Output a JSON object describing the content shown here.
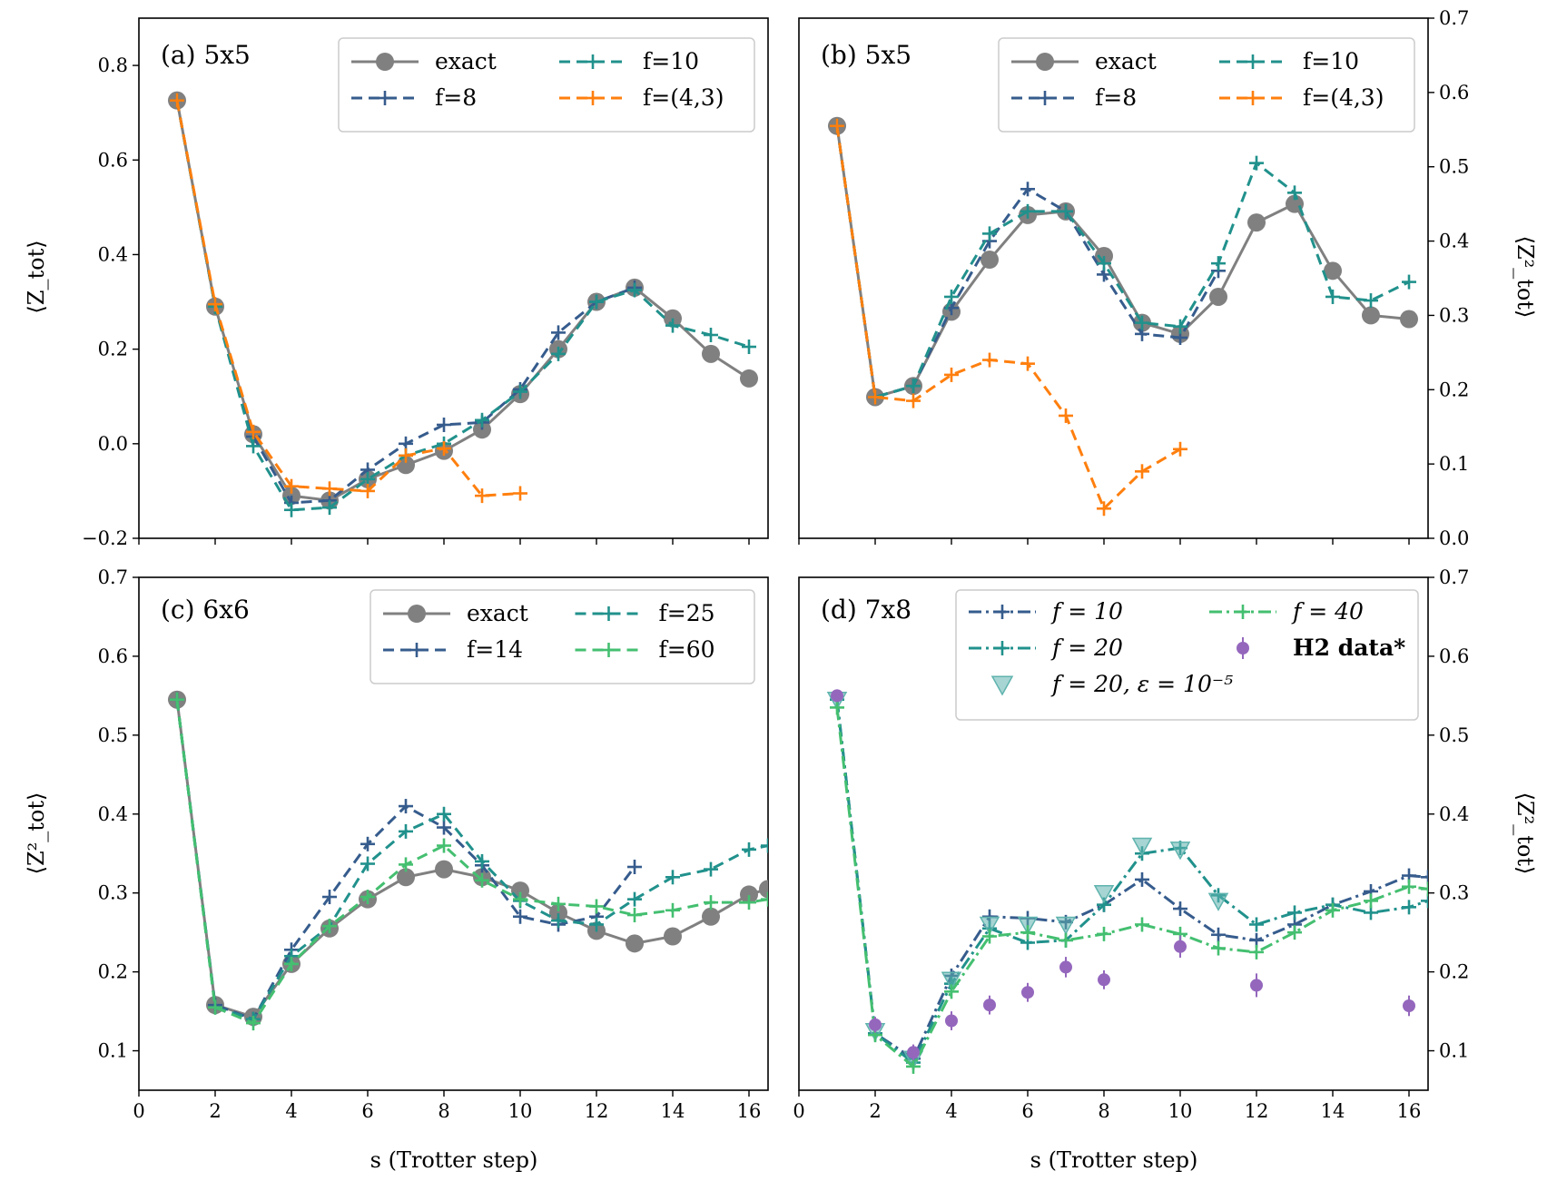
{
  "colors": {
    "exact": "#808080",
    "f8": "#365c8d",
    "f10": "#21918c",
    "f43": "#ff7f0e",
    "f14": "#365c8d",
    "f25": "#21918c",
    "f60": "#44bf70",
    "d_f10": "#365c8d",
    "d_f20": "#21918c",
    "d_f40": "#44bf70",
    "d_eps": "#5fb3ae",
    "h2": "#9467bd"
  },
  "chart_data": [
    {
      "id": "a",
      "type": "line",
      "title": "(a) 5x5",
      "ylabel": "⟨Z_tot⟩",
      "ylabel_side": "left",
      "xlabel": "",
      "xlim": [
        0,
        16.5
      ],
      "ylim": [
        -0.2,
        0.9
      ],
      "xticks": [
        0,
        2,
        4,
        6,
        8,
        10,
        12,
        14,
        16
      ],
      "yticks": [
        -0.2,
        0.0,
        0.2,
        0.4,
        0.6,
        0.8
      ],
      "ytick_labels": [
        "−0.2",
        "0.0",
        "0.2",
        "0.4",
        "0.6",
        "0.8"
      ],
      "legend": {
        "placement": "top-right",
        "columns": 2
      },
      "series": [
        {
          "name": "exact",
          "style": "exact",
          "color": "#808080",
          "x": [
            1,
            2,
            3,
            4,
            5,
            6,
            7,
            8,
            9,
            10,
            11,
            12,
            13,
            14,
            15,
            16
          ],
          "y": [
            0.726,
            0.29,
            0.02,
            -0.11,
            -0.12,
            -0.075,
            -0.045,
            -0.015,
            0.03,
            0.105,
            0.2,
            0.3,
            0.33,
            0.265,
            0.19,
            0.138
          ]
        },
        {
          "name": "f=8",
          "style": "dash-plus",
          "color": "#365c8d",
          "x": [
            1,
            2,
            3,
            4,
            5,
            6,
            7,
            8,
            9,
            10,
            11,
            12,
            13
          ],
          "y": [
            0.726,
            0.29,
            0.015,
            -0.125,
            -0.12,
            -0.055,
            0.0,
            0.04,
            0.045,
            0.115,
            0.235,
            0.3,
            0.33
          ]
        },
        {
          "name": "f=10",
          "style": "dash-plus",
          "color": "#21918c",
          "x": [
            1,
            2,
            3,
            4,
            5,
            6,
            7,
            8,
            9,
            10,
            11,
            12,
            13,
            14,
            15,
            16
          ],
          "y": [
            0.726,
            0.29,
            -0.005,
            -0.14,
            -0.135,
            -0.075,
            -0.025,
            0.0,
            0.05,
            0.11,
            0.19,
            0.3,
            0.325,
            0.25,
            0.23,
            0.205
          ]
        },
        {
          "name": "f=(4,3)",
          "style": "dash-plus",
          "color": "#ff7f0e",
          "x": [
            1,
            2,
            3,
            4,
            5,
            6,
            7,
            8,
            9,
            10
          ],
          "y": [
            0.726,
            0.295,
            0.025,
            -0.09,
            -0.095,
            -0.1,
            -0.025,
            -0.01,
            -0.11,
            -0.105
          ]
        }
      ]
    },
    {
      "id": "b",
      "type": "line",
      "title": "(b) 5x5",
      "ylabel": "⟨Z²_tot⟩",
      "ylabel_side": "right",
      "xlabel": "",
      "xlim": [
        0,
        16.5
      ],
      "ylim": [
        0.0,
        0.7
      ],
      "xticks": [
        0,
        2,
        4,
        6,
        8,
        10,
        12,
        14,
        16
      ],
      "yticks": [
        0.0,
        0.1,
        0.2,
        0.3,
        0.4,
        0.5,
        0.6,
        0.7
      ],
      "ytick_labels": [
        "0.0",
        "0.1",
        "0.2",
        "0.3",
        "0.4",
        "0.5",
        "0.6",
        "0.7"
      ],
      "legend": {
        "placement": "top-right",
        "columns": 2
      },
      "series": [
        {
          "name": "exact",
          "style": "exact",
          "color": "#808080",
          "x": [
            1,
            2,
            3,
            4,
            5,
            6,
            7,
            8,
            9,
            10,
            11,
            12,
            13,
            14,
            15,
            16
          ],
          "y": [
            0.555,
            0.19,
            0.205,
            0.305,
            0.375,
            0.435,
            0.44,
            0.38,
            0.29,
            0.275,
            0.325,
            0.425,
            0.45,
            0.36,
            0.3,
            0.295
          ]
        },
        {
          "name": "f=8",
          "style": "dash-plus",
          "color": "#365c8d",
          "x": [
            1,
            2,
            3,
            4,
            5,
            6,
            7,
            8,
            9,
            10,
            11
          ],
          "y": [
            0.555,
            0.19,
            0.205,
            0.31,
            0.4,
            0.47,
            0.44,
            0.355,
            0.275,
            0.27,
            0.36
          ]
        },
        {
          "name": "f=10",
          "style": "dash-plus",
          "color": "#21918c",
          "x": [
            1,
            2,
            3,
            4,
            5,
            6,
            7,
            8,
            9,
            10,
            11,
            12,
            13,
            14,
            15,
            16
          ],
          "y": [
            0.555,
            0.19,
            0.205,
            0.325,
            0.41,
            0.44,
            0.44,
            0.37,
            0.29,
            0.285,
            0.37,
            0.505,
            0.465,
            0.325,
            0.32,
            0.345
          ]
        },
        {
          "name": "f=(4,3)",
          "style": "dash-plus",
          "color": "#ff7f0e",
          "x": [
            1,
            2,
            3,
            4,
            5,
            6,
            7,
            8,
            9,
            10
          ],
          "y": [
            0.555,
            0.19,
            0.185,
            0.22,
            0.24,
            0.235,
            0.165,
            0.04,
            0.09,
            0.12
          ]
        }
      ]
    },
    {
      "id": "c",
      "type": "line",
      "title": "(c) 6x6",
      "ylabel": "⟨Z²_tot⟩",
      "ylabel_side": "left",
      "xlabel": "s (Trotter step)",
      "xlim": [
        0,
        16.5
      ],
      "ylim": [
        0.05,
        0.7
      ],
      "xticks": [
        0,
        2,
        4,
        6,
        8,
        10,
        12,
        14,
        16
      ],
      "yticks": [
        0.1,
        0.2,
        0.3,
        0.4,
        0.5,
        0.6,
        0.7
      ],
      "ytick_labels": [
        "0.1",
        "0.2",
        "0.3",
        "0.4",
        "0.5",
        "0.6",
        "0.7"
      ],
      "legend": {
        "placement": "top-right",
        "columns": 2
      },
      "series": [
        {
          "name": "exact",
          "style": "exact",
          "color": "#808080",
          "x": [
            1,
            2,
            3,
            4,
            5,
            6,
            7,
            8,
            9,
            10,
            11,
            12,
            13,
            14,
            15,
            16,
            16.5
          ],
          "y": [
            0.545,
            0.158,
            0.143,
            0.21,
            0.255,
            0.292,
            0.32,
            0.33,
            0.32,
            0.303,
            0.275,
            0.252,
            0.236,
            0.245,
            0.27,
            0.298,
            0.305
          ]
        },
        {
          "name": "f=14",
          "style": "dash-plus",
          "color": "#365c8d",
          "x": [
            1,
            2,
            3,
            4,
            5,
            6,
            7,
            8,
            9,
            10,
            11,
            12,
            13
          ],
          "y": [
            0.545,
            0.158,
            0.14,
            0.228,
            0.295,
            0.362,
            0.41,
            0.383,
            0.335,
            0.27,
            0.26,
            0.27,
            0.333
          ]
        },
        {
          "name": "f=25",
          "style": "dash-plus",
          "color": "#21918c",
          "x": [
            1,
            2,
            3,
            4,
            5,
            6,
            7,
            8,
            9,
            10,
            11,
            12,
            13,
            14,
            15,
            16,
            16.5
          ],
          "y": [
            0.545,
            0.155,
            0.14,
            0.22,
            0.258,
            0.337,
            0.378,
            0.4,
            0.34,
            0.29,
            0.265,
            0.26,
            0.292,
            0.32,
            0.33,
            0.355,
            0.36
          ]
        },
        {
          "name": "f=60",
          "style": "dash-plus",
          "color": "#44bf70",
          "x": [
            1,
            2,
            3,
            4,
            5,
            6,
            7,
            8,
            9,
            10,
            11,
            12,
            13,
            14,
            15,
            16,
            16.5
          ],
          "y": [
            0.545,
            0.155,
            0.135,
            0.21,
            0.258,
            0.295,
            0.336,
            0.36,
            0.316,
            0.292,
            0.286,
            0.283,
            0.272,
            0.278,
            0.288,
            0.288,
            0.292
          ]
        }
      ]
    },
    {
      "id": "d",
      "type": "line",
      "title": "(d) 7x8",
      "ylabel": "⟨Z²_tot⟩",
      "ylabel_side": "right",
      "xlabel": "s (Trotter step)",
      "xlim": [
        0,
        16.5
      ],
      "ylim": [
        0.05,
        0.7
      ],
      "xticks": [
        0,
        2,
        4,
        6,
        8,
        10,
        12,
        14,
        16
      ],
      "yticks": [
        0.1,
        0.2,
        0.3,
        0.4,
        0.5,
        0.6,
        0.7
      ],
      "ytick_labels": [
        "0.1",
        "0.2",
        "0.3",
        "0.4",
        "0.5",
        "0.6",
        "0.7"
      ],
      "legend": {
        "placement": "top-right",
        "columns": 2
      },
      "series": [
        {
          "name": "f = 10",
          "style": "dashdot-plus",
          "color": "#365c8d",
          "x": [
            1,
            2,
            3,
            4,
            5,
            6,
            7,
            8,
            9,
            10,
            11,
            12,
            13,
            14,
            15,
            16,
            16.5
          ],
          "y": [
            0.545,
            0.122,
            0.09,
            0.195,
            0.27,
            0.268,
            0.263,
            0.285,
            0.317,
            0.28,
            0.247,
            0.24,
            0.26,
            0.285,
            0.302,
            0.322,
            0.32
          ]
        },
        {
          "name": "f = 20",
          "style": "dashdot-plus",
          "color": "#21918c",
          "x": [
            1,
            2,
            3,
            4,
            5,
            6,
            7,
            8,
            9,
            10,
            11,
            12,
            13,
            14,
            15,
            16,
            16.5
          ],
          "y": [
            0.545,
            0.122,
            0.085,
            0.185,
            0.255,
            0.237,
            0.24,
            0.285,
            0.35,
            0.357,
            0.297,
            0.26,
            0.275,
            0.285,
            0.275,
            0.282,
            0.29
          ]
        },
        {
          "name": "f = 20, ε = 10⁻⁵",
          "style": "triangle",
          "color": "#5fb3ae",
          "x": [
            1,
            2,
            3,
            4,
            5,
            6,
            7,
            8,
            9,
            10,
            11
          ],
          "y": [
            0.545,
            0.125,
            0.09,
            0.19,
            0.26,
            0.26,
            0.26,
            0.3,
            0.36,
            0.355,
            0.29
          ]
        },
        {
          "name": "f = 40",
          "style": "dashdot-plus",
          "color": "#44bf70",
          "x": [
            1,
            2,
            3,
            4,
            5,
            6,
            7,
            8,
            9,
            10,
            11,
            12,
            13,
            14,
            15,
            16,
            16.5
          ],
          "y": [
            0.535,
            0.12,
            0.08,
            0.175,
            0.245,
            0.25,
            0.24,
            0.248,
            0.26,
            0.248,
            0.23,
            0.225,
            0.25,
            0.278,
            0.29,
            0.308,
            0.305
          ]
        },
        {
          "name": "H2 data*",
          "style": "errorbar",
          "color": "#9467bd",
          "x": [
            1,
            2,
            3,
            4,
            5,
            6,
            7,
            8,
            10,
            12,
            16
          ],
          "y": [
            0.55,
            0.133,
            0.098,
            0.138,
            0.158,
            0.174,
            0.206,
            0.19,
            0.232,
            0.183,
            0.157
          ],
          "err": [
            0.008,
            0.01,
            0.01,
            0.012,
            0.012,
            0.012,
            0.013,
            0.012,
            0.014,
            0.015,
            0.013
          ]
        }
      ]
    }
  ]
}
